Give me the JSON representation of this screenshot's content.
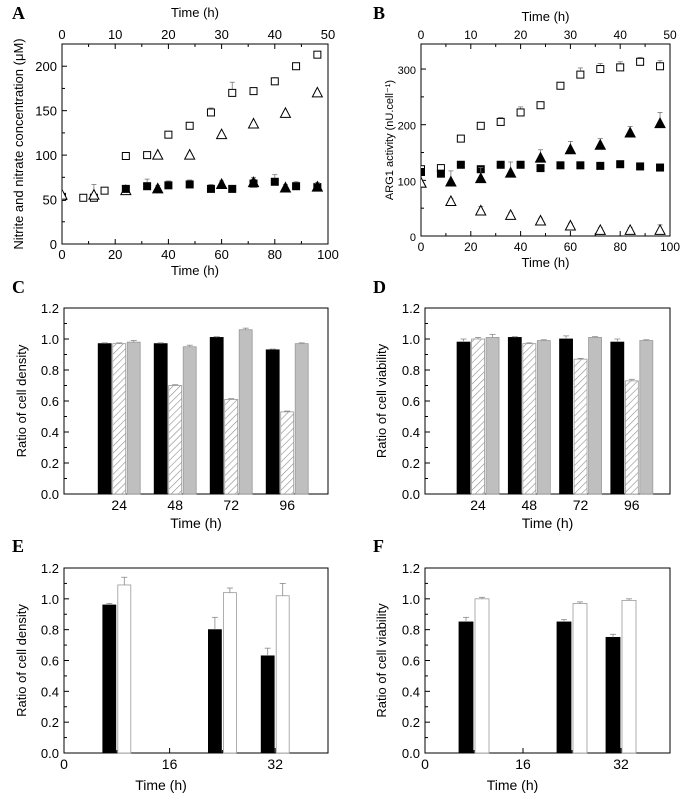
{
  "chart_data": [
    {
      "id": "A",
      "letter": "A",
      "type": "scatter",
      "xlabel": "Time (h)",
      "top_xlabel": "Time (h)",
      "ylabel": "Nitrite and nitrate concentration (μM)",
      "xlim": [
        0,
        100
      ],
      "ylim": [
        0,
        225
      ],
      "xticks": [
        0,
        20,
        40,
        60,
        80,
        100
      ],
      "yticks": [
        0,
        50,
        100,
        150,
        200
      ],
      "top_xlim": [
        0,
        50
      ],
      "top_xticks": [
        0,
        10,
        20,
        30,
        40,
        50
      ],
      "series": [
        {
          "name": "open square",
          "marker": "square-open",
          "x": [
            0,
            8,
            12,
            16,
            24,
            32,
            40,
            48,
            56,
            64,
            72,
            80,
            88,
            96
          ],
          "y": [
            53,
            52,
            52,
            60,
            99,
            100,
            123,
            133,
            148,
            170,
            172,
            183,
            200,
            213
          ],
          "err": [
            0,
            0,
            0,
            0,
            2,
            3,
            2,
            2,
            5,
            12,
            2,
            4,
            2,
            3
          ]
        },
        {
          "name": "open triangle",
          "marker": "triangle-open",
          "x": [
            0,
            12,
            24,
            36,
            48,
            60,
            72,
            84,
            96
          ],
          "y": [
            55,
            55,
            60,
            100,
            100,
            123,
            135,
            147,
            170
          ],
          "err": [
            0,
            12,
            2,
            2,
            2,
            2,
            2,
            2,
            2
          ]
        },
        {
          "name": "filled square",
          "marker": "square-filled",
          "x": [
            24,
            32,
            40,
            48,
            56,
            64,
            72,
            80,
            88,
            96
          ],
          "y": [
            62,
            65,
            66,
            67,
            62,
            62,
            68,
            70,
            65,
            64
          ],
          "err": [
            3,
            8,
            5,
            5,
            5,
            3,
            5,
            8,
            5,
            5
          ]
        },
        {
          "name": "filled triangle",
          "marker": "triangle-filled",
          "x": [
            36,
            60,
            72,
            84,
            96
          ],
          "y": [
            62,
            67,
            69,
            63,
            64
          ],
          "err": [
            4,
            4,
            6,
            4,
            4
          ]
        }
      ]
    },
    {
      "id": "B",
      "letter": "B",
      "type": "scatter",
      "xlabel": "Time (h)",
      "top_xlabel": "Time (h)",
      "ylabel": "ARG1 activity (nU.cell⁻¹)",
      "xlim": [
        0,
        100
      ],
      "ylim": [
        0,
        345
      ],
      "xticks": [
        0,
        20,
        40,
        60,
        80,
        100
      ],
      "yticks": [
        0,
        100,
        200,
        300
      ],
      "top_xlim": [
        0,
        50
      ],
      "top_xticks": [
        0,
        10,
        20,
        30,
        40,
        50
      ],
      "series": [
        {
          "name": "open square",
          "marker": "square-open",
          "x": [
            0,
            8,
            16,
            24,
            32,
            40,
            48,
            56,
            64,
            72,
            80,
            88,
            96
          ],
          "y": [
            120,
            122,
            175,
            198,
            205,
            222,
            235,
            270,
            290,
            300,
            303,
            313,
            305
          ],
          "err": [
            5,
            5,
            5,
            5,
            8,
            10,
            5,
            5,
            12,
            10,
            10,
            8,
            10
          ]
        },
        {
          "name": "filled square",
          "marker": "square-filled",
          "x": [
            0,
            8,
            16,
            24,
            32,
            40,
            48,
            56,
            64,
            72,
            80,
            88,
            96
          ],
          "y": [
            115,
            112,
            128,
            120,
            128,
            128,
            122,
            127,
            127,
            126,
            129,
            125,
            123
          ],
          "err": [
            3,
            3,
            3,
            3,
            3,
            3,
            3,
            3,
            3,
            3,
            3,
            3,
            3
          ]
        },
        {
          "name": "filled triangle",
          "marker": "triangle-filled",
          "x": [
            0,
            12,
            24,
            36,
            48,
            60,
            72,
            84,
            96
          ],
          "y": [
            95,
            97,
            103,
            113,
            140,
            155,
            163,
            185,
            202
          ],
          "err": [
            5,
            20,
            20,
            20,
            15,
            15,
            12,
            12,
            20
          ]
        },
        {
          "name": "open triangle",
          "marker": "triangle-open",
          "x": [
            0,
            12,
            24,
            36,
            48,
            60,
            72,
            84,
            96
          ],
          "y": [
            95,
            62,
            45,
            37,
            27,
            18,
            10,
            10,
            10
          ],
          "err": [
            5,
            5,
            8,
            5,
            5,
            5,
            5,
            5,
            10
          ]
        }
      ]
    },
    {
      "id": "C",
      "letter": "C",
      "type": "bar",
      "xlabel": "Time (h)",
      "ylabel": "Ratio of cell density",
      "ylim": [
        0,
        1.2
      ],
      "yticks": [
        0.0,
        0.2,
        0.4,
        0.6,
        0.8,
        1.0,
        1.2
      ],
      "categories": [
        "24",
        "48",
        "72",
        "96"
      ],
      "series": [
        {
          "name": "black",
          "fill": "#000000",
          "values": [
            0.97,
            0.97,
            1.01,
            0.93
          ],
          "err": [
            0.005,
            0.005,
            0.005,
            0.005
          ]
        },
        {
          "name": "hatched",
          "fill": "hatch",
          "values": [
            0.97,
            0.7,
            0.61,
            0.53
          ],
          "err": [
            0.005,
            0.005,
            0.005,
            0.005
          ]
        },
        {
          "name": "grey",
          "fill": "#bfbfbf",
          "values": [
            0.98,
            0.95,
            1.06,
            0.97
          ],
          "err": [
            0.01,
            0.01,
            0.01,
            0.005
          ]
        }
      ]
    },
    {
      "id": "D",
      "letter": "D",
      "type": "bar",
      "xlabel": "Time (h)",
      "ylabel": "Ratio of cell viability",
      "ylim": [
        0,
        1.2
      ],
      "yticks": [
        0.0,
        0.2,
        0.4,
        0.6,
        0.8,
        1.0,
        1.2
      ],
      "categories": [
        "24",
        "48",
        "72",
        "96"
      ],
      "series": [
        {
          "name": "black",
          "fill": "#000000",
          "values": [
            0.98,
            1.01,
            1.0,
            0.98
          ],
          "err": [
            0.02,
            0.005,
            0.02,
            0.02
          ]
        },
        {
          "name": "hatched",
          "fill": "hatch",
          "values": [
            1.0,
            0.97,
            0.87,
            0.73
          ],
          "err": [
            0.01,
            0.005,
            0.005,
            0.01
          ]
        },
        {
          "name": "grey",
          "fill": "#bfbfbf",
          "values": [
            1.01,
            0.99,
            1.01,
            0.99
          ],
          "err": [
            0.02,
            0.005,
            0.005,
            0.005
          ]
        }
      ]
    },
    {
      "id": "E",
      "letter": "E",
      "type": "bar",
      "xlabel": "Time (h)",
      "ylabel": "Ratio of cell density",
      "xlim": [
        0,
        40
      ],
      "xticks": [
        0,
        16,
        32
      ],
      "ylim": [
        0,
        1.2
      ],
      "yticks": [
        0.0,
        0.2,
        0.4,
        0.6,
        0.8,
        1.0,
        1.2
      ],
      "bars": [
        {
          "x": 8,
          "fill": "#000000",
          "value": 0.96,
          "err": 0.01
        },
        {
          "x": 8,
          "fill": "#ffffff",
          "value": 1.09,
          "err": 0.05
        },
        {
          "x": 24,
          "fill": "#000000",
          "value": 0.8,
          "err": 0.08
        },
        {
          "x": 24,
          "fill": "#ffffff",
          "value": 1.04,
          "err": 0.03
        },
        {
          "x": 32,
          "fill": "#000000",
          "value": 0.63,
          "err": 0.05
        },
        {
          "x": 32,
          "fill": "#ffffff",
          "value": 1.02,
          "err": 0.08
        }
      ]
    },
    {
      "id": "F",
      "letter": "F",
      "type": "bar",
      "xlabel": "Time (h)",
      "ylabel": "Ratio of cell viability",
      "xlim": [
        0,
        40
      ],
      "xticks": [
        0,
        16,
        32
      ],
      "ylim": [
        0,
        1.2
      ],
      "yticks": [
        0.0,
        0.2,
        0.4,
        0.6,
        0.8,
        1.0,
        1.2
      ],
      "bars": [
        {
          "x": 8,
          "fill": "#000000",
          "value": 0.85,
          "err": 0.03
        },
        {
          "x": 8,
          "fill": "#ffffff",
          "value": 1.0,
          "err": 0.01
        },
        {
          "x": 24,
          "fill": "#000000",
          "value": 0.85,
          "err": 0.015
        },
        {
          "x": 24,
          "fill": "#ffffff",
          "value": 0.97,
          "err": 0.01
        },
        {
          "x": 32,
          "fill": "#000000",
          "value": 0.75,
          "err": 0.02
        },
        {
          "x": 32,
          "fill": "#ffffff",
          "value": 0.99,
          "err": 0.01
        }
      ]
    }
  ]
}
